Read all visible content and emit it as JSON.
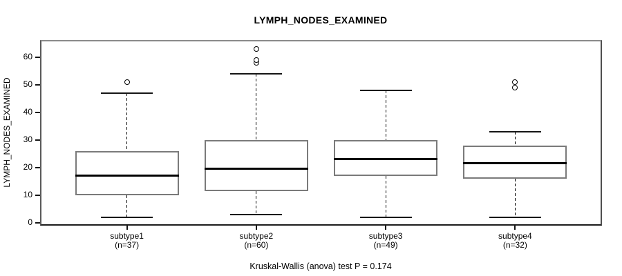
{
  "chart_data": {
    "type": "boxplot",
    "title": "LYMPH_NODES_EXAMINED",
    "ylabel": "LYMPH_NODES_EXAMINED",
    "xlabel": "",
    "annotation": "Kruskal-Wallis (anova) test P = 0.174",
    "yticks": [
      0,
      10,
      20,
      30,
      40,
      50,
      60
    ],
    "ylim": [
      -0.625,
      65.875
    ],
    "grid": false,
    "legend": "none",
    "series": [
      {
        "label": "subtype1",
        "sublabel": "(n=37)",
        "n": 37,
        "whisker_low": 2,
        "q1": 10,
        "median": 17,
        "q3": 26,
        "whisker_high": 47,
        "outliers": [
          51
        ]
      },
      {
        "label": "subtype2",
        "sublabel": "(n=60)",
        "n": 60,
        "whisker_low": 3,
        "q1": 11.5,
        "median": 19.5,
        "q3": 30,
        "whisker_high": 54,
        "outliers": [
          58,
          59,
          63
        ]
      },
      {
        "label": "subtype3",
        "sublabel": "(n=49)",
        "n": 49,
        "whisker_low": 2,
        "q1": 17,
        "median": 23,
        "q3": 30,
        "whisker_high": 48,
        "outliers": []
      },
      {
        "label": "subtype4",
        "sublabel": "(n=32)",
        "n": 32,
        "whisker_low": 2,
        "q1": 16,
        "median": 21.5,
        "q3": 28,
        "whisker_high": 33,
        "outliers": [
          49,
          51
        ]
      }
    ],
    "colors": {
      "box_border": "#7a7a7a",
      "median": "#000000",
      "whisker": "#000000",
      "frame": "#8a8a8a",
      "text": "#000000",
      "background": "#ffffff"
    }
  }
}
